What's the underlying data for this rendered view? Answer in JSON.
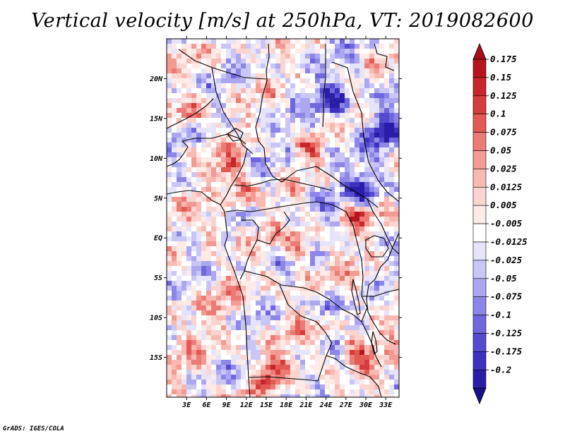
{
  "header": {
    "title": "Vertical velocity [m/s] at 250hPa, VT: 2019082600"
  },
  "footer": {
    "credit": "GrADS: IGES/COLA"
  },
  "chart_data": {
    "type": "heatmap",
    "title": "Vertical velocity [m/s] at 250hPa, VT: 2019082600",
    "variable": "Vertical velocity",
    "units": "m/s",
    "level": "250hPa",
    "valid_time": "2019082600",
    "xlabel": "",
    "ylabel": "",
    "xlim": [
      0,
      35
    ],
    "ylim": [
      -20,
      25
    ],
    "x_ticks": [
      {
        "value": 3,
        "label": "3E"
      },
      {
        "value": 6,
        "label": "6E"
      },
      {
        "value": 9,
        "label": "9E"
      },
      {
        "value": 12,
        "label": "12E"
      },
      {
        "value": 15,
        "label": "15E"
      },
      {
        "value": 18,
        "label": "18E"
      },
      {
        "value": 21,
        "label": "21E"
      },
      {
        "value": 24,
        "label": "24E"
      },
      {
        "value": 27,
        "label": "27E"
      },
      {
        "value": 30,
        "label": "30E"
      },
      {
        "value": 33,
        "label": "33E"
      }
    ],
    "y_ticks": [
      {
        "value": 20,
        "label": "20N"
      },
      {
        "value": 15,
        "label": "15N"
      },
      {
        "value": 10,
        "label": "10N"
      },
      {
        "value": 5,
        "label": "5N"
      },
      {
        "value": 0,
        "label": "EQ"
      },
      {
        "value": -5,
        "label": "5S"
      },
      {
        "value": -10,
        "label": "10S"
      },
      {
        "value": -15,
        "label": "15S"
      }
    ],
    "colorbar": {
      "max_color": "#a50f15",
      "min_color": "#1a0f8c",
      "bins": [
        {
          "label": "0.175",
          "color": "#b7151d"
        },
        {
          "label": "0.15",
          "color": "#c8262a"
        },
        {
          "label": "0.125",
          "color": "#d63c3a"
        },
        {
          "label": "0.1",
          "color": "#e35a55"
        },
        {
          "label": "0.075",
          "color": "#ec7b75"
        },
        {
          "label": "0.05",
          "color": "#f39a93"
        },
        {
          "label": "0.025",
          "color": "#f8b9b3"
        },
        {
          "label": "0.0125",
          "color": "#fcd4cf"
        },
        {
          "label": "0.005",
          "color": "#feeae7"
        },
        {
          "label": "-0.005",
          "color": "#ffffff"
        },
        {
          "label": "-0.0125",
          "color": "#e6e4fb"
        },
        {
          "label": "-0.025",
          "color": "#c9c6f6"
        },
        {
          "label": "-0.05",
          "color": "#aba7f0"
        },
        {
          "label": "-0.075",
          "color": "#8c86e8"
        },
        {
          "label": "-0.1",
          "color": "#6f67de"
        },
        {
          "label": "-0.125",
          "color": "#544bd0"
        },
        {
          "label": "-0.175",
          "color": "#3d31bf"
        },
        {
          "label": "-0.2",
          "color": "#2a1ea8"
        }
      ]
    }
  }
}
